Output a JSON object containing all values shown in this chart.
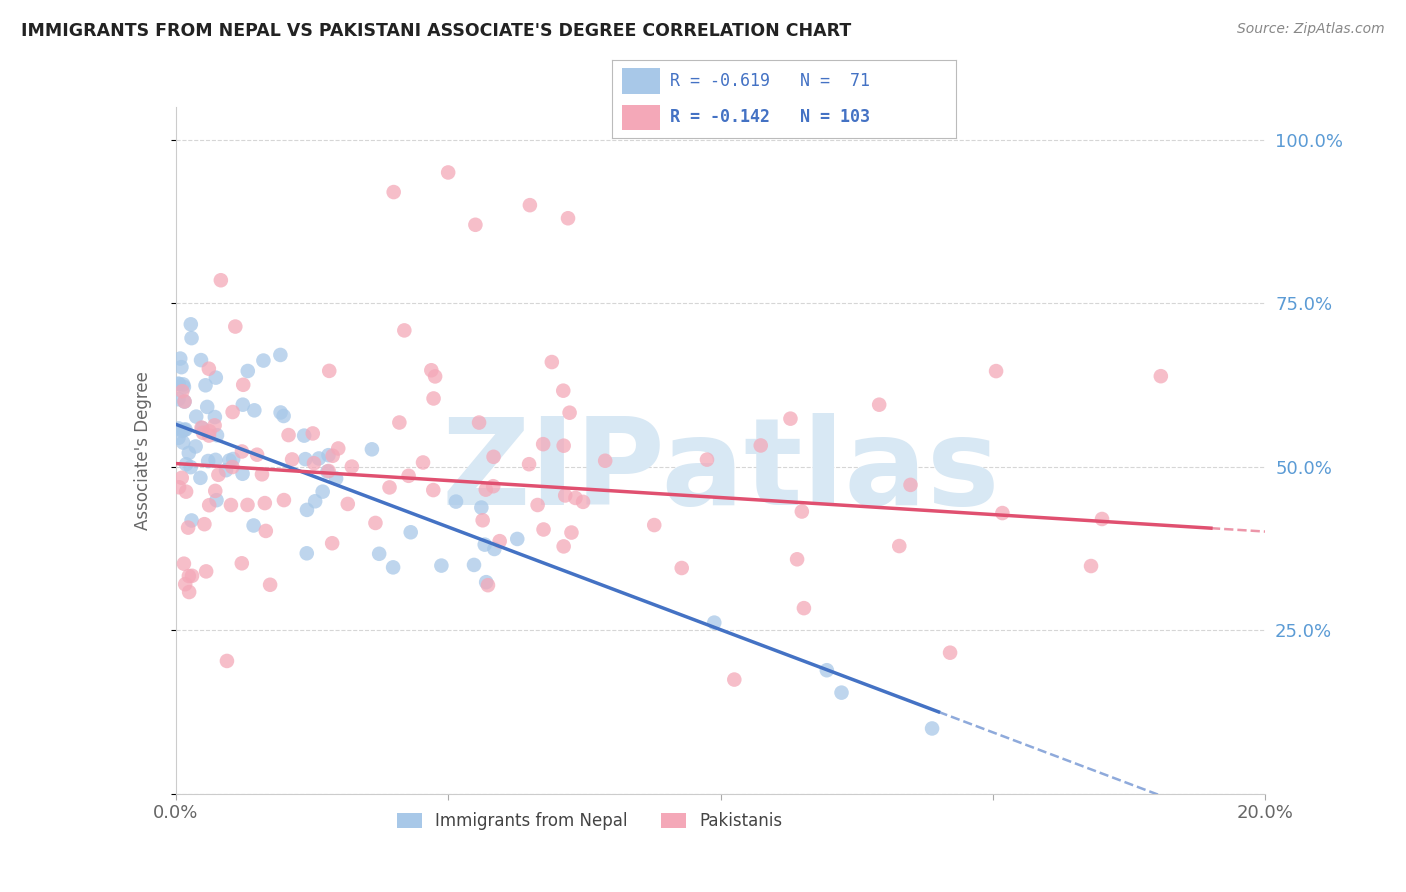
{
  "title": "IMMIGRANTS FROM NEPAL VS PAKISTANI ASSOCIATE'S DEGREE CORRELATION CHART",
  "source": "Source: ZipAtlas.com",
  "ylabel": "Associate's Degree",
  "xlim": [
    0.0,
    0.2
  ],
  "ylim": [
    0.0,
    1.05
  ],
  "yticks": [
    0.0,
    0.25,
    0.5,
    0.75,
    1.0
  ],
  "ytick_labels": [
    "",
    "25.0%",
    "50.0%",
    "75.0%",
    "100.0%"
  ],
  "xticks": [
    0.0,
    0.05,
    0.1,
    0.15,
    0.2
  ],
  "xtick_labels": [
    "0.0%",
    "",
    "",
    "",
    "20.0%"
  ],
  "nepal_R": -0.619,
  "nepal_N": 71,
  "pakistan_R": -0.142,
  "pakistan_N": 103,
  "nepal_color": "#a8c8e8",
  "pakistan_color": "#f4a8b8",
  "nepal_line_color": "#4472c4",
  "pakistan_line_color": "#e05070",
  "background_color": "#ffffff",
  "grid_color": "#cccccc",
  "watermark_color": "#d8e8f4",
  "legend_label_nepal": "Immigrants from Nepal",
  "legend_label_pakistan": "Pakistanis",
  "title_color": "#222222",
  "right_axis_color": "#5b9bd5",
  "legend_text_color": "#4472c4"
}
